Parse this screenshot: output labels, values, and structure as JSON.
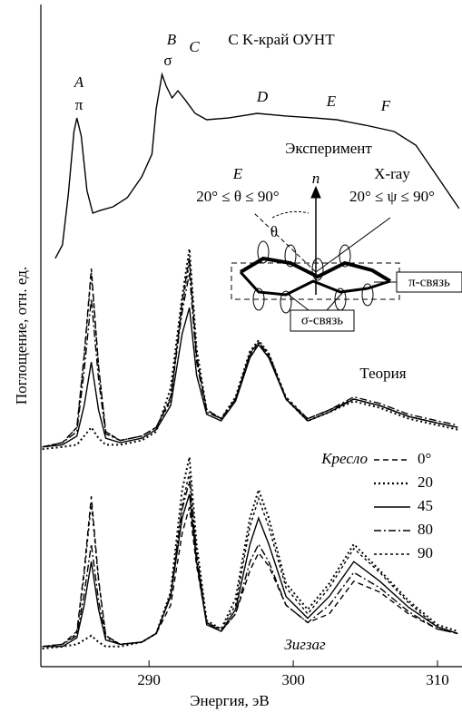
{
  "chart_data": [
    {
      "type": "line",
      "title": "С K-край ОУНТ",
      "label": "Эксперимент",
      "ylabel": "Поглощение, отн. ед.",
      "annotations": [
        "A",
        "π",
        "B",
        "σ",
        "C",
        "D",
        "E",
        "F"
      ],
      "xlim": [
        282.5,
        311.7
      ],
      "ylim": [
        0,
        100
      ],
      "x": [
        283.5,
        284.0,
        284.4,
        284.8,
        285.0,
        285.3,
        285.7,
        286.1,
        286.6,
        287.5,
        288.5,
        289.5,
        290.2,
        290.5,
        290.9,
        291.2,
        291.6,
        292.0,
        292.5,
        293.2,
        294.0,
        295.5,
        297.5,
        299.5,
        301.5,
        303.0,
        305.0,
        307.0,
        308.5,
        310.0,
        311.5
      ],
      "series": [
        {
          "color": "#000000",
          "dash": "solid",
          "values": [
            6.3,
            12.5,
            35.4,
            64.6,
            70.8,
            62.5,
            37.5,
            27.1,
            28.3,
            30,
            34.2,
            43.8,
            54.2,
            75,
            90.8,
            85.4,
            80,
            83.3,
            79.2,
            72.9,
            70,
            70.8,
            72.9,
            71.7,
            70.8,
            70,
            67.5,
            64.6,
            58.3,
            43.8,
            29.2
          ]
        }
      ]
    },
    {
      "type": "line",
      "label": "Теория",
      "legend_title": "Кресло",
      "xlim": [
        282.5,
        311.7
      ],
      "ylim": [
        0,
        100
      ],
      "x": [
        282.6,
        284,
        285,
        285.5,
        286,
        286.5,
        287,
        288,
        289.5,
        290.5,
        291.5,
        292.3,
        292.8,
        293.3,
        294,
        295,
        296,
        297,
        297.6,
        298.3,
        299.5,
        301,
        302.5,
        304.2,
        306,
        308,
        310,
        311.4
      ],
      "series": [
        {
          "name": "0°",
          "color": "#000000",
          "dash": "6,4",
          "values": [
            3,
            5,
            12,
            45,
            85,
            40,
            10,
            6,
            8,
            12,
            25,
            70,
            90,
            45,
            20,
            16,
            25,
            45,
            50,
            45,
            25,
            16,
            20,
            25,
            22,
            17,
            14,
            12
          ]
        },
        {
          "name": "20",
          "color": "#000000",
          "dash": "2,3",
          "values": [
            2,
            3,
            4,
            8,
            12,
            7,
            4,
            4,
            6,
            10,
            30,
            72,
            94,
            48,
            20,
            16,
            26,
            47,
            52,
            46,
            25,
            15,
            19,
            24,
            21,
            16,
            13,
            11
          ]
        },
        {
          "name": "45",
          "color": "#000000",
          "dash": "solid",
          "values": [
            3,
            4,
            8,
            22,
            42,
            20,
            7,
            5,
            7,
            11,
            22,
            55,
            67,
            36,
            18,
            15,
            24,
            44,
            50,
            44,
            25,
            15,
            19,
            25,
            22,
            17,
            14,
            12
          ]
        },
        {
          "name": "80",
          "color": "#000000",
          "dash": "8,3,2,3",
          "values": [
            3,
            5,
            10,
            38,
            71,
            34,
            9,
            6,
            8,
            12,
            26,
            65,
            83,
            42,
            19,
            16,
            25,
            46,
            51,
            45,
            25,
            16,
            20,
            26,
            23,
            18,
            15,
            13
          ]
        },
        {
          "name": "90",
          "color": "#000000",
          "dash": "3,3",
          "values": [
            3,
            5,
            12,
            44,
            83,
            40,
            10,
            6,
            8,
            12,
            24,
            68,
            88,
            44,
            20,
            16,
            25,
            46,
            51,
            46,
            26,
            16,
            20,
            25,
            22,
            17,
            14,
            12
          ]
        }
      ]
    },
    {
      "type": "line",
      "label": "Зигзаг",
      "xlabel": "Энергия, эВ",
      "xlim": [
        282.5,
        311.7
      ],
      "ylim": [
        0,
        100
      ],
      "xticks": [
        290,
        300,
        310
      ],
      "x": [
        282.6,
        284,
        285,
        285.5,
        286,
        286.5,
        287,
        288,
        289.5,
        290.5,
        291.5,
        292.3,
        292.8,
        293.3,
        294,
        295,
        296,
        297,
        297.6,
        298.3,
        299.5,
        301,
        302.5,
        304.2,
        306,
        308,
        310,
        311.4
      ],
      "series": [
        {
          "color": "#000000",
          "dash": "6,4",
          "values": [
            3,
            4,
            10,
            38,
            72,
            34,
            8,
            4,
            5,
            9,
            22,
            55,
            67,
            40,
            14,
            10,
            18,
            38,
            46,
            40,
            22,
            14,
            18,
            33,
            28,
            18,
            11,
            9
          ]
        },
        {
          "color": "#000000",
          "dash": "2,3",
          "values": [
            2,
            3,
            4,
            6,
            8,
            5,
            3,
            3,
            5,
            9,
            28,
            75,
            90,
            50,
            15,
            11,
            25,
            62,
            75,
            62,
            32,
            20,
            32,
            50,
            38,
            24,
            13,
            10
          ]
        },
        {
          "color": "#000000",
          "dash": "solid",
          "values": [
            3,
            3,
            7,
            22,
            42,
            20,
            6,
            4,
            5,
            9,
            26,
            62,
            73,
            42,
            13,
            10,
            20,
            50,
            62,
            50,
            26,
            16,
            26,
            42,
            33,
            21,
            12,
            9
          ]
        },
        {
          "color": "#000000",
          "dash": "8,3,2,3",
          "values": [
            3,
            4,
            8,
            27,
            50,
            24,
            7,
            4,
            5,
            9,
            26,
            66,
            79,
            45,
            14,
            10,
            18,
            42,
            50,
            42,
            22,
            14,
            22,
            37,
            30,
            19,
            11,
            9
          ]
        },
        {
          "color": "#000000",
          "dash": "3,3",
          "values": [
            3,
            4,
            9,
            36,
            69,
            33,
            8,
            4,
            5,
            9,
            27,
            68,
            83,
            46,
            14,
            11,
            22,
            58,
            71,
            58,
            30,
            18,
            30,
            48,
            37,
            23,
            12,
            9
          ]
        }
      ]
    }
  ],
  "inset": {
    "e_label": "E",
    "theta_range": "20° ≤ θ ≤ 90°",
    "normal": "n",
    "xray": "X-ray",
    "psi_range": "20° ≤ ψ ≤ 90°",
    "theta": "θ",
    "pi_bond": "π-связь",
    "sigma_bond": "σ-связь"
  }
}
